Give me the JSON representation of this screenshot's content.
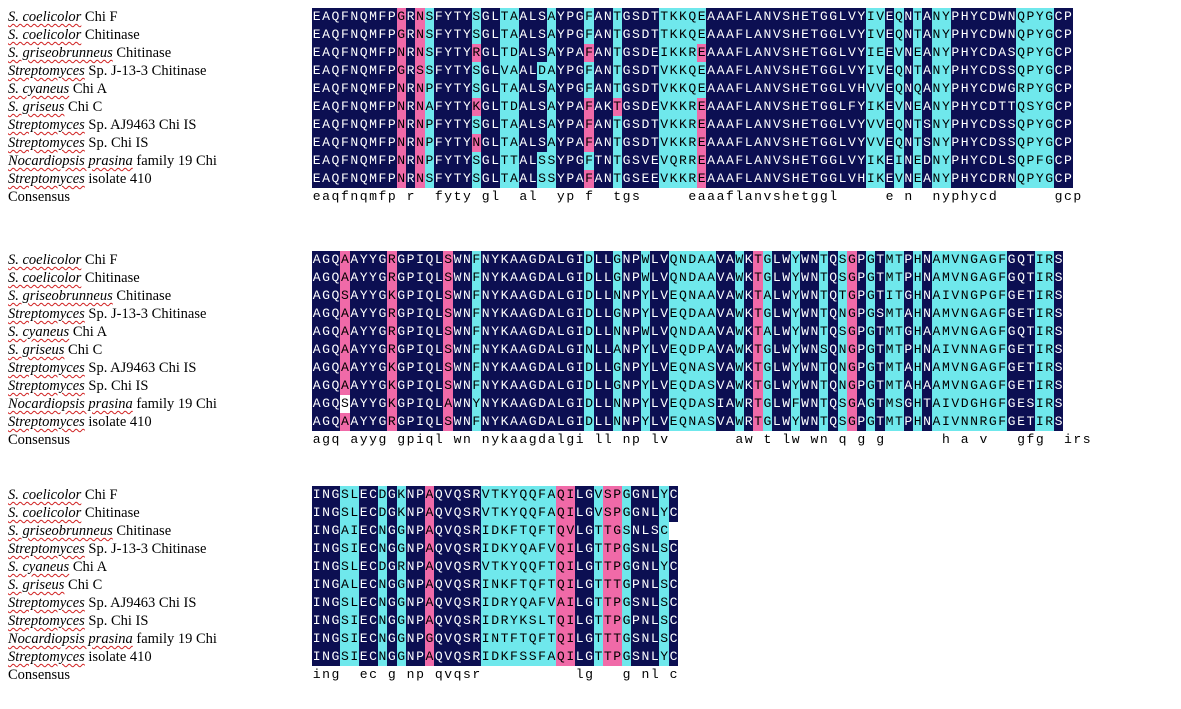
{
  "colors": {
    "identical": "#0c0f52",
    "high": "#f06aa8",
    "medium": "#6fe8ec",
    "low": "#ffffff",
    "text_dark_bg": "#ffffff",
    "text_light_bg": "#000000"
  },
  "species": [
    {
      "italic": "S. coelicolor",
      "rest": " Chi F"
    },
    {
      "italic": "S. coelicolor",
      "rest": " Chitinase"
    },
    {
      "italic": "S. griseobrunneus",
      "rest": " Chitinase"
    },
    {
      "italic": "Streptomyces",
      "rest": " Sp. J-13-3 Chitinase"
    },
    {
      "italic": "S. cyaneus",
      "rest": " Chi A"
    },
    {
      "italic": "S. griseus",
      "rest": " Chi C"
    },
    {
      "italic": "Streptomyces",
      "rest": " Sp. AJ9463 Chi IS"
    },
    {
      "italic": "Streptomyces",
      "rest": " Sp. Chi IS"
    },
    {
      "italic": "Nocardiopsis prasina",
      "rest": " family 19 Chi"
    },
    {
      "italic": "Streptomyces",
      "rest": " isolate 410"
    }
  ],
  "consensus_label": "Consensus",
  "blocks": [
    {
      "sequences": [
        "EAQFNQMFPGRNSFYTYSGLTAALSAYPGFANTGSDTTKKQEAAAFLANVSHETGGLVYIVEQNTANYPHYCDWNQPYGCP",
        "EAQFNQMFPGRNSFYTYSGLTAALSAYPGFANTGSDTTKKQEAAAFLANVSHETGGLVYIVEQNTANYPHYCDWNQPYGCP",
        "EAQFNQMFPNRNSFYTYRGLTDALSAYPAFANTGSDEIKKREAAAFLANVSHETGGLVYIEEVNEANYPHYCDASQPYGCP",
        "EAQFNQMFPGRSSFYTYSGLVAALDAYPGFANTGSDTVKKQEAAAFLANVSHETGGLVYIVEQNTANYPHYCDSSQPYGCP",
        "EAQFNQMFPNRNPFYTYSGLTAALSAYPGFANTGSDTVKKQEAAAFLANVSHETGGLVHVVEQNQANYPHYCDWGRPYGCP",
        "EAQFNQMFPNRNAFYTYKGLTDALSAYPAFAKTGSDEVKKREAAAFLANVSHETGGLFYIKEVNEANYPHYCDTTQSYGCP",
        "EAQFNQMFPNRNPFYTYSGLTAALSAYPAFANTGSDTVKKREAAAFLANVSHETGGLVYVVEQNTSNYPHYCDSSQPYGCP",
        "EAQFNQMFPNRNPFYTYNGLTAALSAYPAFANTGSDTVKKREAAAFLANVSHETGGLVYVVEQNTSNYPHYCDSSQPYGCP",
        "EAQFNQMFPNRNPFYTYSGLTTALSSYPGFTNTGSVEVQRREAAAFLANVSHETGGLVYIKEINEDNYPHYCDLSQPFGCP",
        "EAQFNQMFPNRNSFYTYSGLTAALSSYPAFANTGSEEVKKREAAAFLANVSHETGGLVHIKEVNEANYPHYCDRNQPYGCP"
      ],
      "consensus": "eaqfnqmfp r  fyty gl  al  yp f  tgs     eaaaflanvshetggl     e n  nyphycd      gcp",
      "pattern": [
        "IIIIIIIIIHIHMIIIIMIIMMIIIMIIIMIIMIIIIMMMMMIIIIIIIIIIIIIIIIIMMIMIMIMMIIIIIIIMMMMIIIII",
        "IIIIIIIIIHIHMIIIIMIIMMIIIMIIIMIIMIIIIMMMMMIIIIIIIIIIIIIIIIIMMIMIMIMMIIIIIIIMMMMIIIII",
        "IIIIIIIIIHIHMIIIIHIIMMIIIMIIIHIIMIIIIMMMMHIIIIIIIIIIIIIIIIIMMIMIMIMMIIIIIIIMMMMIIIII",
        "IIIIIIIIIHIHMIIIIMIIMMIIMMIIIMIIMIIIIMMMMMIIIIIIIIIIIIIIIIIMMIMIMIMMIIIIIIIMMMMIIIII",
        "IIIIIIIIIHIHMIIIIMIIMMIIIMIIIMIIMIIIIMMMMMIIIIIIIIIIIIIIIIIMMIMIMIMMIIIIIIIMMMMIIIII",
        "IIIIIIIIIHIHMIIIIHIIMMIIIMIIIHIIHIIIIMMMMHIIIIIIIIIIIIIIIIIMMIMIMIMMIIIIIIIMMMMIIIII",
        "IIIIIIIIIHIHMIIIIMIIMMIIIMIIIHIIMIIIIMMMMHIIIIIIIIIIIIIIIIIMMIMIMIMMIIIIIIIMMMMIIIII",
        "IIIIIIIIIHIHMIIIIHIIMMIIIMIIIHIIMIIIIMMMMHIIIIIIIIIIIIIIIIIMMIMIMIMMIIIIIIIMMMMIIIII",
        "IIIIIIIIIHIHMIIIIMIIMMIIMMIIIMIIMIIIIMMMMHIIIIIIIIIIIIIIIIIMMIMIMIMMIIIIIIIMMMMIIIII",
        "IIIIIIIIIHIHMIIIIMIIMMIIMMIIIHIIMIIIIMMMMHIIIIIIIIIIIIIIIIIMMIMIMIMMIIIIIIIMMMMIIIII"
      ]
    },
    {
      "sequences": [
        "AGQAAYYGRGPIQLSWNFNYKAAGDALGIDLLGNPWLVQNDAAVAWKTGLWYWNTQSGPGTMTPHNAMVNGAGFGQTIRS",
        "AGQAAYYGRGPIQLSWNFNYKAAGDALGIDLLGNPWLVQNDAAVAWKTGLWYWNTQSGPGTMTPHNAMVNGAGFGQTIRS",
        "AGQSAYYGKGPIQLSWNFNYKAAGDALGIDLLNNPYLVEQNAAVAWKTALWYWNTQTGPGTITGHNAIVNGPGFGETIRS",
        "AGQAAYYGRGPIQLSWNFNYKAAGDALGIDLLGNPYLVEQDAAVAWKTGLWYWNTQNGPGSMTAHNAMVNGAGFGETIRS",
        "AGQAAYYGRGPIQLSWNFNYKAAGDALGIDLLNNPWLVQNDAAVAWKTALWYWNTQSGPGTMTGHAAMVNGAGFGQTIRS",
        "AGQAAYYGRGPIQLSWNFNYKAAGDALGINLLANPYLVEQDPAVAWKTGLWYWNSQNGPGTMTPHNAIVNNAGFGETIRS",
        "AGQAAYYGKGPIQLSWNFNYKAAGDALGIDLLGNPYLVEQNASVAWKTGLWYWNTQNGPGTMTAHNAMVNGAGFGETIRS",
        "AGQAAYYGKGPIQLSWNFNYKAAGDALGIDLLGNPYLVEQDASVAWKTGLWYWNTQNGPGTMTAHAAMVNGAGFGETIRS",
        "AGQSAYYGKGPIQLAWNYNYKAAGDALGIDLLNNPYLVEQDASIAWRTGLWFWNTQSGAGTMSGHTAIVDGHGFGESIRS",
        "AGQAAYYGRGPIQLSWNFNYKAAGDALGIDLLNNPYLVEQNASVAWRTGLWYWNTQSGPGTMTPHNAIVNNRGFGETIRS"
      ],
      "consensus": "agq ayyg gpiql wn nykaagdalgi ll np lv       aw t lw wn q g g      h a v   gfg  irs",
      "pattern": [
        "IIIHIIIIHIIIIIHIIMIIIIIIIIIIIMIIMIIMIIMMMMMIIMIHMIIMIIMIMHIMIMMIMIMMMMMMMMIIIMMIII",
        "IIIHIIIIHIIIIIHIIMIIIIIIIIIIIMIIMIIMIIMMMMMIIMIHMIIMIIMIMHIMIMMIMIMMMMMMMMIIIMMIII",
        "IIIHIIIIHIIIIIHIIMIIIIIIIIIIIMIIMIIMIIMMMMMIIMIHMIIMIIMIMHIMIMMIMIMMMMMMMMIIIMMIII",
        "IIIHIIIIHIIIIIHIIMIIIIIIIIIIIMIIMIIMIIMMMMMIIMIHMIIMIIMIMHIMIMMIMIMMMMMMMMIIIMMIII",
        "IIIHIIIIHIIIIIHIIMIIIIIIIIIIIMIIMIIMIIMMMMMIIMIHMIIMIIMIMHIMIMMIMIMMMMMMMMIIIMMIII",
        "IIIHIIIIHIIIIIHIIMIIIIIIIIIIIMIIMIIMIIMMMMMIIMIHMIIMIIMIMHIMIMMIMIMMMMMMMMIIIMMIII",
        "IIIHIIIIHIIIIIHIIMIIIIIIIIIIIMIIMIIMIIMMMMMIIMIHMIIMIIMIMHIMIMMIMIMMMMMMMMIIIMMIII",
        "IIIHIIIIHIIIIIHIIMIIIIIIIIIIIMIIMIIMIIMMMMMIIMIHMIIMIIMIMHIMIMMIMIMMMMMMMMIIIMMIII",
        "IIILIIIIHIIIIIHIIMIIIIIIIIIIIMIIMIIMIIMMMMMIIMIHMIIMIIMIMHIMIMMIMIMMMMMMMMIIIMMIII",
        "IIIHIIIIHIIIIIHIIMIIIIIIIIIIIMIIMIIMIIMMMMMIIMIHMIIMIIMIMHIMIMMIMIMMMMMMMMIIIMMIII"
      ]
    },
    {
      "sequences": [
        "INGSLECDGKNPAQVQSRVTKYQQFAQILGVSPGGNLYC",
        "INGSLECDGKNPAQVQSRVTKYQQFAQILGVSPGGNLYC",
        "INGAIECNGGNPAQVQSRIDKFTQFTQVLGTTGSNLSC",
        "INGSIECNGGNPAQVQSRIDKYQAFVQILGTTPGSNLSC",
        "INGSLECDGRNPAQVQSRVTKYQQFTQILGTTPGGNLYC",
        "INGALECNGGNPAQVQSRINKFTQFTQILGTTTGPNLSC",
        "INGSLECNGGNPAQVQSRIDRYQAFVAILGTTPGSNLSC",
        "INGSIECNGGNPAQVQSRIDRYKSLTQILGTTPGPNLSC",
        "INGSIECNGGNPGQVQSRINTFTQFTQILGTTTGSNLSC",
        "INGSIECNGGNPAQVQSRIDKFSSFAQILGTTPGSNLYC"
      ],
      "consensus": "ing  ec g np qvqsr          lg   g nl c",
      "pattern": [
        "IIIMMIIMIMIIHIIIIIMMMMMMMMHHIIMHHMIIIMI",
        "IIIMMIIMIMIIHIIIIIMMMMMMMMHHIIMHHMIIIMI",
        "IIIMMIIMIMIIHIIIIIMMMMMMMMHHIIMHHMIIIMI",
        "IIIMMIIMIMIIHIIIIIMMMMMMMMHHIIMHHMIIIMI",
        "IIIMMIIMIMIIHIIIIIMMMMMMMMHHIIMHHMIIIMI",
        "IIIMMIIMIMIIHIIIIIMMMMMMMMHHIIMHHMIIIMI",
        "IIIMMIIMIMIIHIIIIIMMMMMMMMHHIIMHHMIIIMI",
        "IIIMMIIMIMIIHIIIIIMMMMMMMMHHIIMHHMIIIMI",
        "IIIMMIIMIMIIHIIIIIMMMMMMMMHHIIMHHMIIIMI",
        "IIIMMIIMIMIIHIIIIIMMMMMMMMHHIIMHHMIIIMI"
      ]
    }
  ]
}
